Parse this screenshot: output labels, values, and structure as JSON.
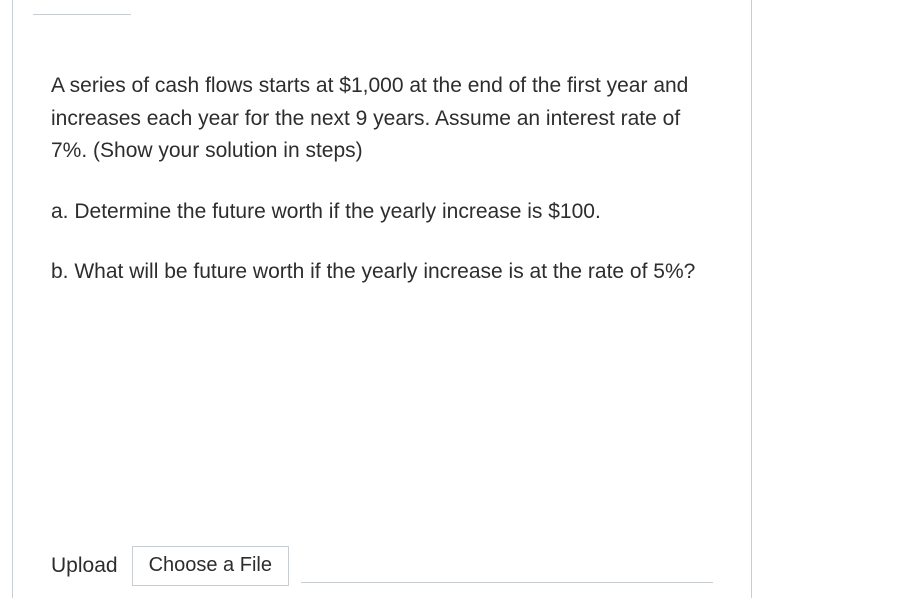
{
  "question": {
    "intro": "A series of cash flows starts at $1,000 at the end of the first year and increases each year for the next 9 years. Assume an interest rate of 7%. (Show your solution in steps)",
    "part_a": "a. Determine the future worth if the yearly increase is $100.",
    "part_b": "b. What will be future worth if the yearly increase is at the rate of 5%?"
  },
  "upload": {
    "label": "Upload",
    "button": "Choose a File"
  },
  "colors": {
    "border": "#c7cdd1",
    "text": "#2d2d2d",
    "background": "#ffffff"
  },
  "typography": {
    "body_fontsize": 21,
    "line_height": 1.55
  }
}
